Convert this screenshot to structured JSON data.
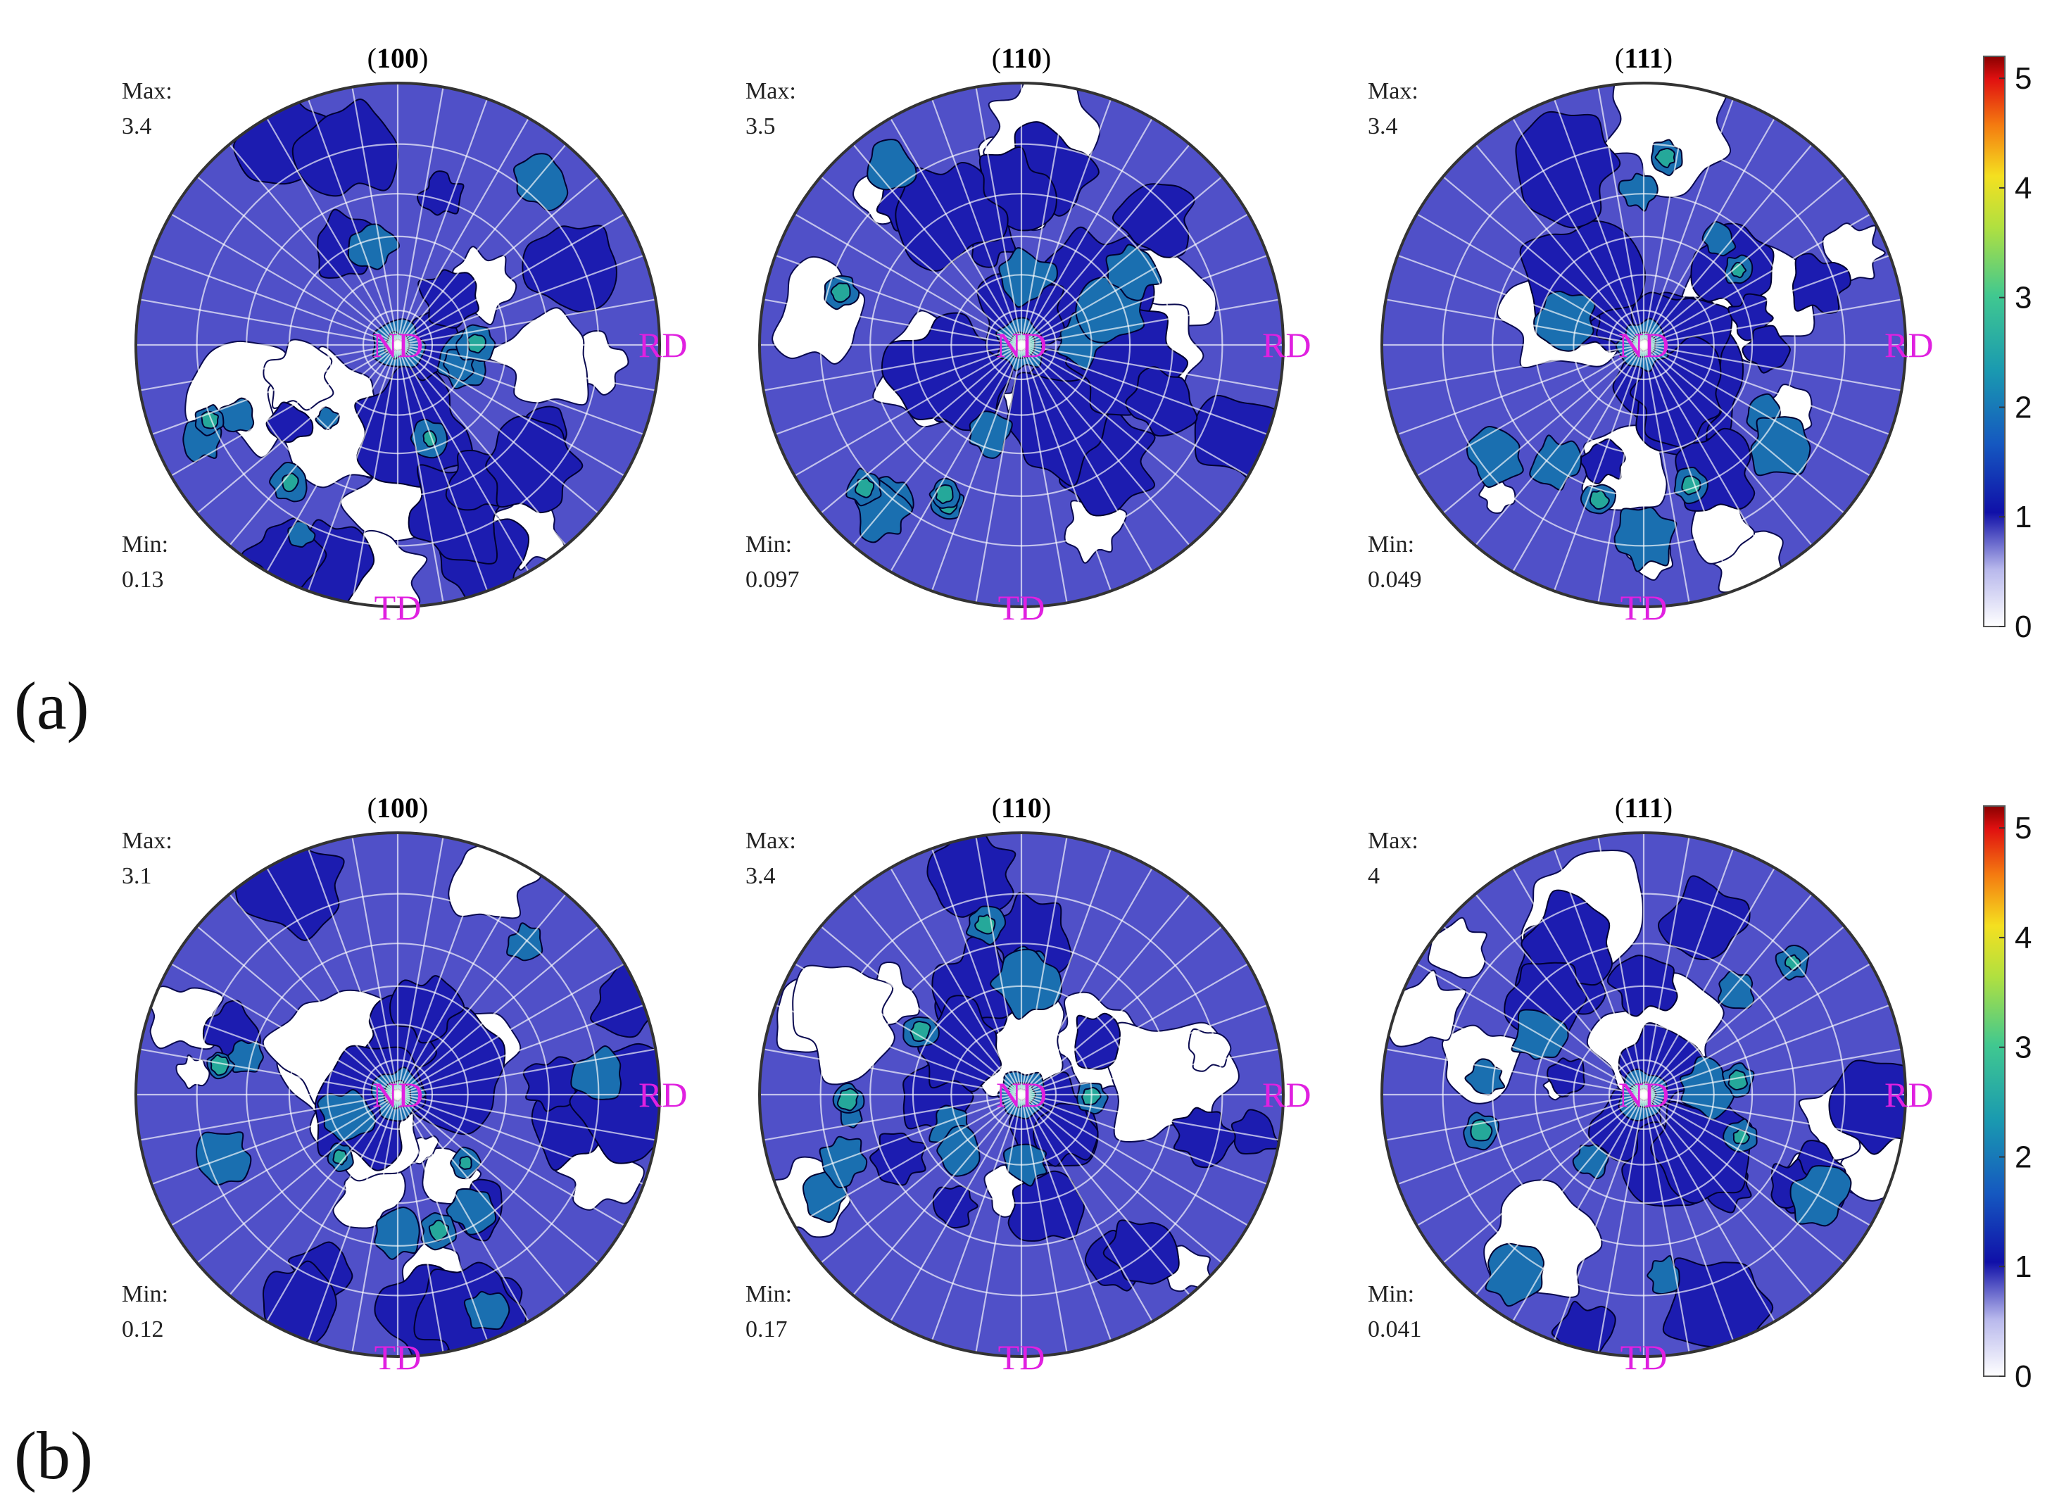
{
  "chart_data": [
    {
      "type": "heatmap",
      "panel_label": "(a)",
      "plots": [
        {
          "plane": "(100)",
          "title_prefix": "(",
          "title_bold": "100",
          "title_suffix": ")",
          "max_label": "Max:",
          "max_value": "3.4",
          "min_label": "Min:",
          "min_value": "0.13",
          "east_label": "RD",
          "south_label": "TD",
          "center_label": "ND"
        },
        {
          "plane": "(110)",
          "title_prefix": "(",
          "title_bold": "110",
          "title_suffix": ")",
          "max_label": "Max:",
          "max_value": "3.5",
          "min_label": "Min:",
          "min_value": "0.097",
          "east_label": "RD",
          "south_label": "TD",
          "center_label": "ND"
        },
        {
          "plane": "(111)",
          "title_prefix": "(",
          "title_bold": "111",
          "title_suffix": ")",
          "max_label": "Max:",
          "max_value": "3.4",
          "min_label": "Min:",
          "min_value": "0.049",
          "east_label": "RD",
          "south_label": "TD",
          "center_label": "ND"
        }
      ],
      "colorbar": {
        "ticks": [
          "0",
          "1",
          "2",
          "3",
          "4",
          "5"
        ],
        "range": [
          0,
          5.2
        ]
      }
    },
    {
      "type": "heatmap",
      "panel_label": "(b)",
      "plots": [
        {
          "plane": "(100)",
          "title_prefix": "(",
          "title_bold": "100",
          "title_suffix": ")",
          "max_label": "Max:",
          "max_value": "3.1",
          "min_label": "Min:",
          "min_value": "0.12",
          "east_label": "RD",
          "south_label": "TD",
          "center_label": "ND"
        },
        {
          "plane": "(110)",
          "title_prefix": "(",
          "title_bold": "110",
          "title_suffix": ")",
          "max_label": "Max:",
          "max_value": "3.4",
          "min_label": "Min:",
          "min_value": "0.17",
          "east_label": "RD",
          "south_label": "TD",
          "center_label": "ND"
        },
        {
          "plane": "(111)",
          "title_prefix": "(",
          "title_bold": "111",
          "title_suffix": ")",
          "max_label": "Max:",
          "max_value": "4",
          "min_label": "Min:",
          "min_value": "0.041",
          "east_label": "RD",
          "south_label": "TD",
          "center_label": "ND"
        }
      ],
      "colorbar": {
        "ticks": [
          "0",
          "1",
          "2",
          "3",
          "4",
          "5"
        ],
        "range": [
          0,
          5.2
        ]
      }
    }
  ],
  "colors": {
    "background_low": "#ffffff",
    "level_1": "#5050c8",
    "level_2": "#1c1cb0",
    "level_3": "#1a6fb0",
    "level_4": "#25a89a",
    "level_5": "#8fe070",
    "direction_label": "#e020e0",
    "rim": "#333333"
  }
}
